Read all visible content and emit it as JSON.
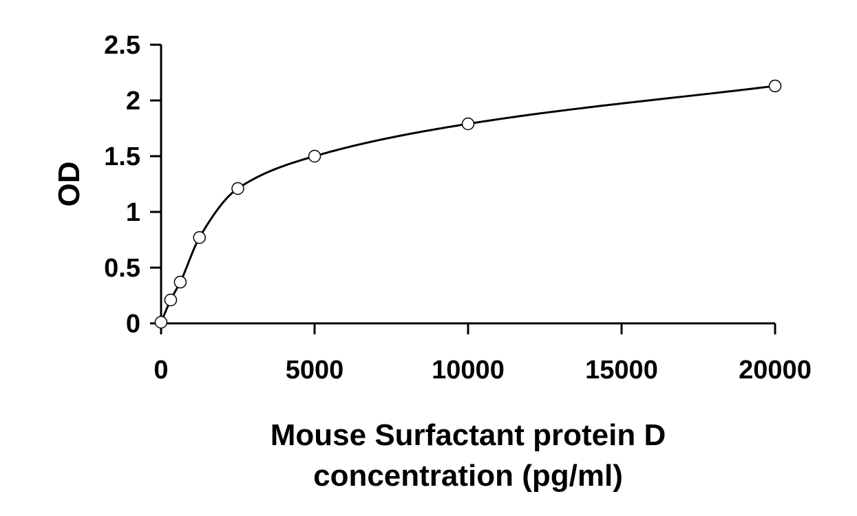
{
  "chart_data": {
    "type": "scatter",
    "title": "",
    "xlabel_lines": [
      "Mouse Surfactant protein D",
      "concentration (pg/ml)"
    ],
    "ylabel": "OD",
    "xlim": [
      0,
      20000
    ],
    "ylim": [
      0,
      2.5
    ],
    "x_ticks": [
      "0",
      "5000",
      "10000",
      "15000",
      "20000"
    ],
    "y_ticks": [
      "0",
      "0.5",
      "1",
      "1.5",
      "2",
      "2.5"
    ],
    "grid": false,
    "legend": "none",
    "series": [
      {
        "marker": "open-circle",
        "line": "smooth-fit",
        "x": [
          0,
          312.5,
          625,
          1250,
          2500,
          5000,
          10000,
          20000
        ],
        "y": [
          0.01,
          0.21,
          0.37,
          0.77,
          1.21,
          1.5,
          1.79,
          2.13
        ]
      }
    ]
  }
}
